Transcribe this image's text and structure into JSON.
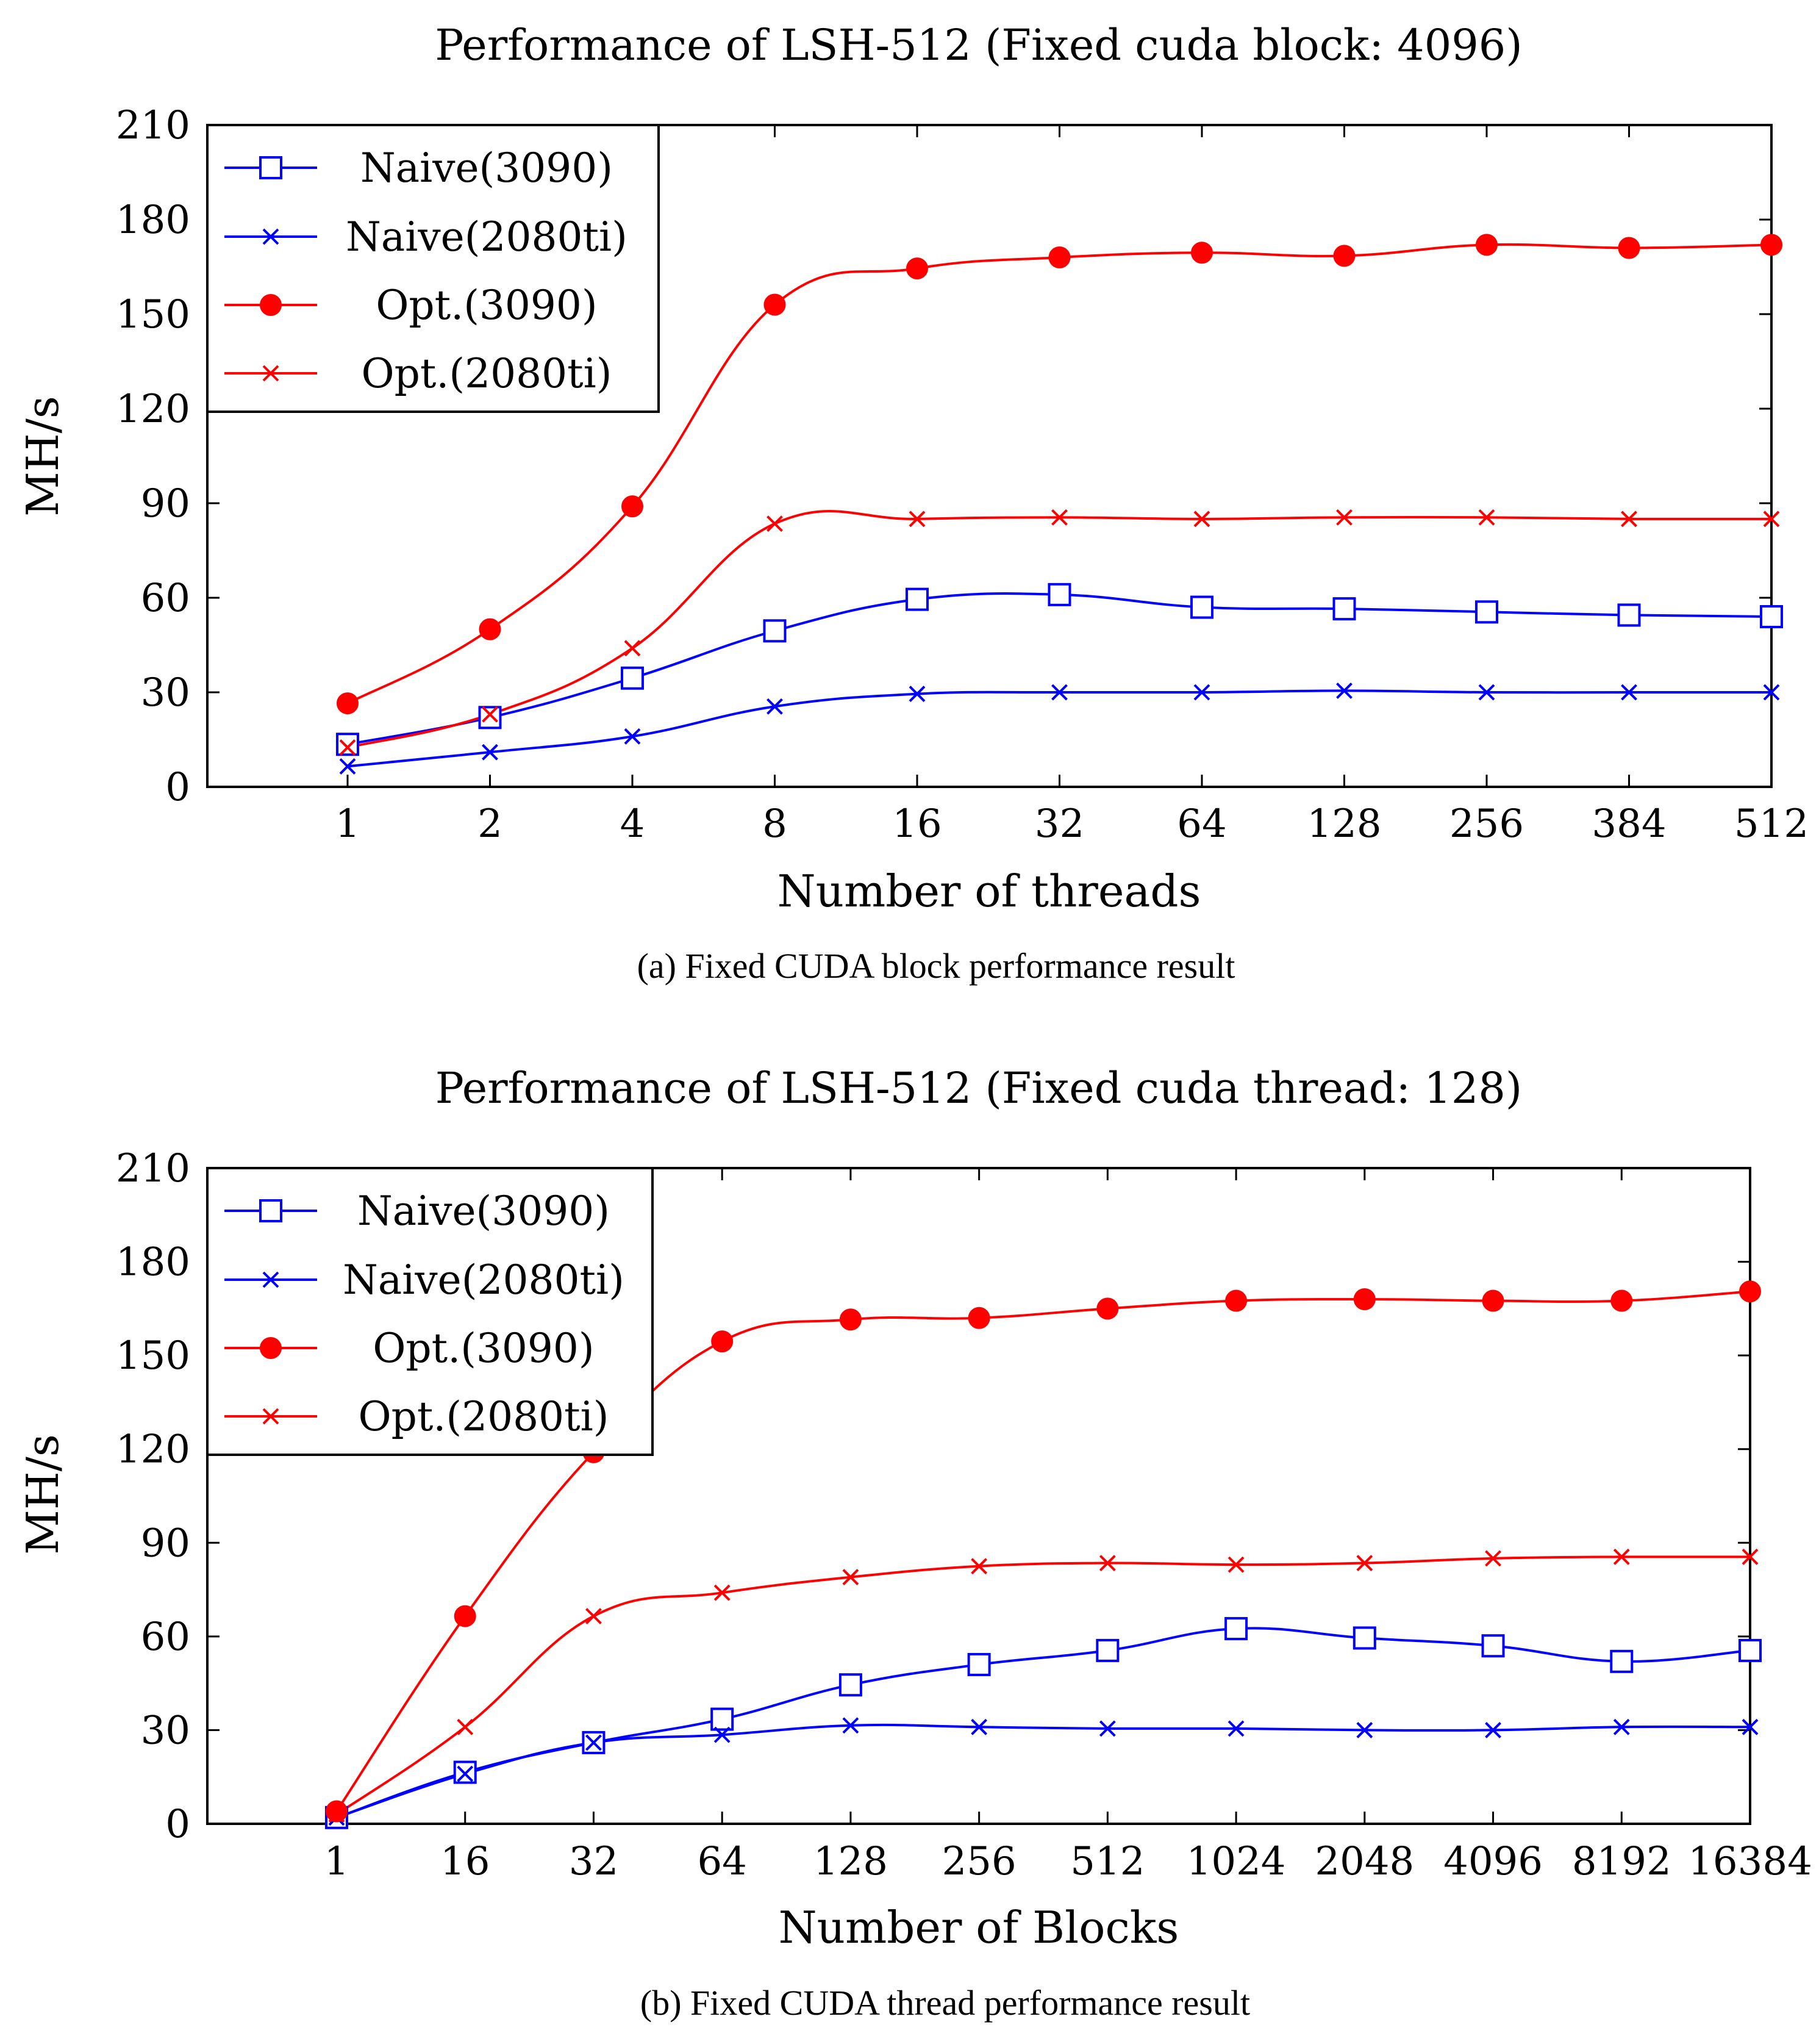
{
  "chart_data": [
    {
      "type": "line",
      "title": "Performance of LSH-512 (Fixed cuda block: 4096)",
      "xlabel": "Number of threads",
      "ylabel": "MH/s",
      "caption": "(a)  Fixed CUDA block performance result",
      "categories": [
        "1",
        "2",
        "4",
        "8",
        "16",
        "32",
        "64",
        "128",
        "256",
        "384",
        "512"
      ],
      "ylim": [
        0,
        210
      ],
      "yticks": [
        0,
        30,
        60,
        90,
        120,
        150,
        180,
        210
      ],
      "legend_position": "top-left",
      "series": [
        {
          "name": "Naive(3090)",
          "color": "#0000ff",
          "marker": "square",
          "values": [
            13.5,
            22,
            34.5,
            49.5,
            59.5,
            61,
            57,
            56.5,
            55.5,
            54.5,
            54
          ]
        },
        {
          "name": "Naive(2080ti)",
          "color": "#0000ff",
          "marker": "x",
          "values": [
            6.5,
            11,
            16,
            25.5,
            29.5,
            30,
            30,
            30.5,
            30,
            30,
            30
          ]
        },
        {
          "name": "Opt.(3090)",
          "color": "#ff0000",
          "marker": "dot",
          "values": [
            26.5,
            50,
            89,
            153,
            164.5,
            168,
            169.5,
            168.5,
            172,
            171,
            172
          ]
        },
        {
          "name": "Opt.(2080ti)",
          "color": "#ff0000",
          "marker": "x",
          "values": [
            12.5,
            23,
            44,
            83.5,
            85,
            85.5,
            85,
            85.5,
            85.5,
            85,
            85
          ]
        }
      ]
    },
    {
      "type": "line",
      "title": "Performance of LSH-512 (Fixed cuda thread: 128)",
      "xlabel": "Number of Blocks",
      "ylabel": "MH/s",
      "caption": "(b)  Fixed CUDA thread performance result",
      "categories": [
        "1",
        "16",
        "32",
        "64",
        "128",
        "256",
        "512",
        "1024",
        "2048",
        "4096",
        "8192",
        "16384"
      ],
      "ylim": [
        0,
        210
      ],
      "yticks": [
        0,
        30,
        60,
        90,
        120,
        150,
        180,
        210
      ],
      "legend_position": "top-left",
      "series": [
        {
          "name": "Naive(3090)",
          "color": "#0000ff",
          "marker": "square",
          "values": [
            2,
            16.5,
            26,
            33.5,
            44.5,
            51,
            55.5,
            62.5,
            59.5,
            57,
            52,
            55.5
          ]
        },
        {
          "name": "Naive(2080ti)",
          "color": "#0000ff",
          "marker": "x",
          "values": [
            2,
            16,
            26,
            28.5,
            31.5,
            31,
            30.5,
            30.5,
            30,
            30,
            31,
            31
          ]
        },
        {
          "name": "Opt.(3090)",
          "color": "#ff0000",
          "marker": "dot",
          "values": [
            4,
            66.5,
            119,
            154.5,
            161.5,
            162,
            165,
            167.5,
            168,
            167.5,
            167.5,
            170.5
          ]
        },
        {
          "name": "Opt.(2080ti)",
          "color": "#ff0000",
          "marker": "x",
          "values": [
            3,
            31,
            66.5,
            74,
            79,
            82.5,
            83.5,
            83,
            83.5,
            85,
            85.5,
            85.5
          ]
        }
      ]
    }
  ]
}
